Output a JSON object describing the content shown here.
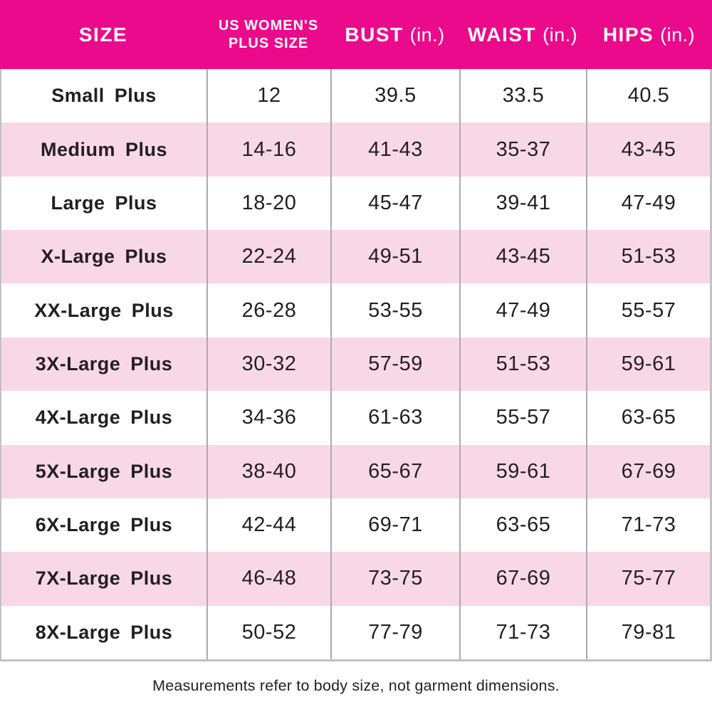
{
  "chart_data": {
    "type": "table",
    "columns": [
      "SIZE",
      "US WOMEN'S PLUS SIZE",
      "BUST (in.)",
      "WAIST (in.)",
      "HIPS (in.)"
    ],
    "rows": [
      [
        "Small Plus",
        "12",
        "39.5",
        "33.5",
        "40.5"
      ],
      [
        "Medium Plus",
        "14-16",
        "41-43",
        "35-37",
        "43-45"
      ],
      [
        "Large Plus",
        "18-20",
        "45-47",
        "39-41",
        "47-49"
      ],
      [
        "X-Large Plus",
        "22-24",
        "49-51",
        "43-45",
        "51-53"
      ],
      [
        "XX-Large Plus",
        "26-28",
        "53-55",
        "47-49",
        "55-57"
      ],
      [
        "3X-Large Plus",
        "30-32",
        "57-59",
        "51-53",
        "59-61"
      ],
      [
        "4X-Large Plus",
        "34-36",
        "61-63",
        "55-57",
        "63-65"
      ],
      [
        "5X-Large Plus",
        "38-40",
        "65-67",
        "59-61",
        "67-69"
      ],
      [
        "6X-Large Plus",
        "42-44",
        "69-71",
        "63-65",
        "71-73"
      ],
      [
        "7X-Large Plus",
        "46-48",
        "73-75",
        "67-69",
        "75-77"
      ],
      [
        "8X-Large Plus",
        "50-52",
        "77-79",
        "71-73",
        "79-81"
      ]
    ],
    "note": "Measurements refer to body size, not garment dimensions.",
    "layout": {
      "row_striping": "white-pink-alternating",
      "grid": "vertical-dividers-only"
    }
  },
  "header": {
    "size_label": "SIZE",
    "us_line1": "US WOMEN'S",
    "us_line2": "PLUS SIZE",
    "bust_label": "BUST",
    "bust_unit": "(in.)",
    "waist_label": "WAIST",
    "waist_unit": "(in.)",
    "hips_label": "HIPS",
    "hips_unit": "(in.)"
  },
  "colors": {
    "header_bg": "#EB0A8C",
    "header_text": "#FFFFFF",
    "row_alt_bg": "#F8D8E7",
    "text": "#231F20",
    "grid_line": "#ABABAB",
    "outer_border": "#C2C2C2"
  }
}
